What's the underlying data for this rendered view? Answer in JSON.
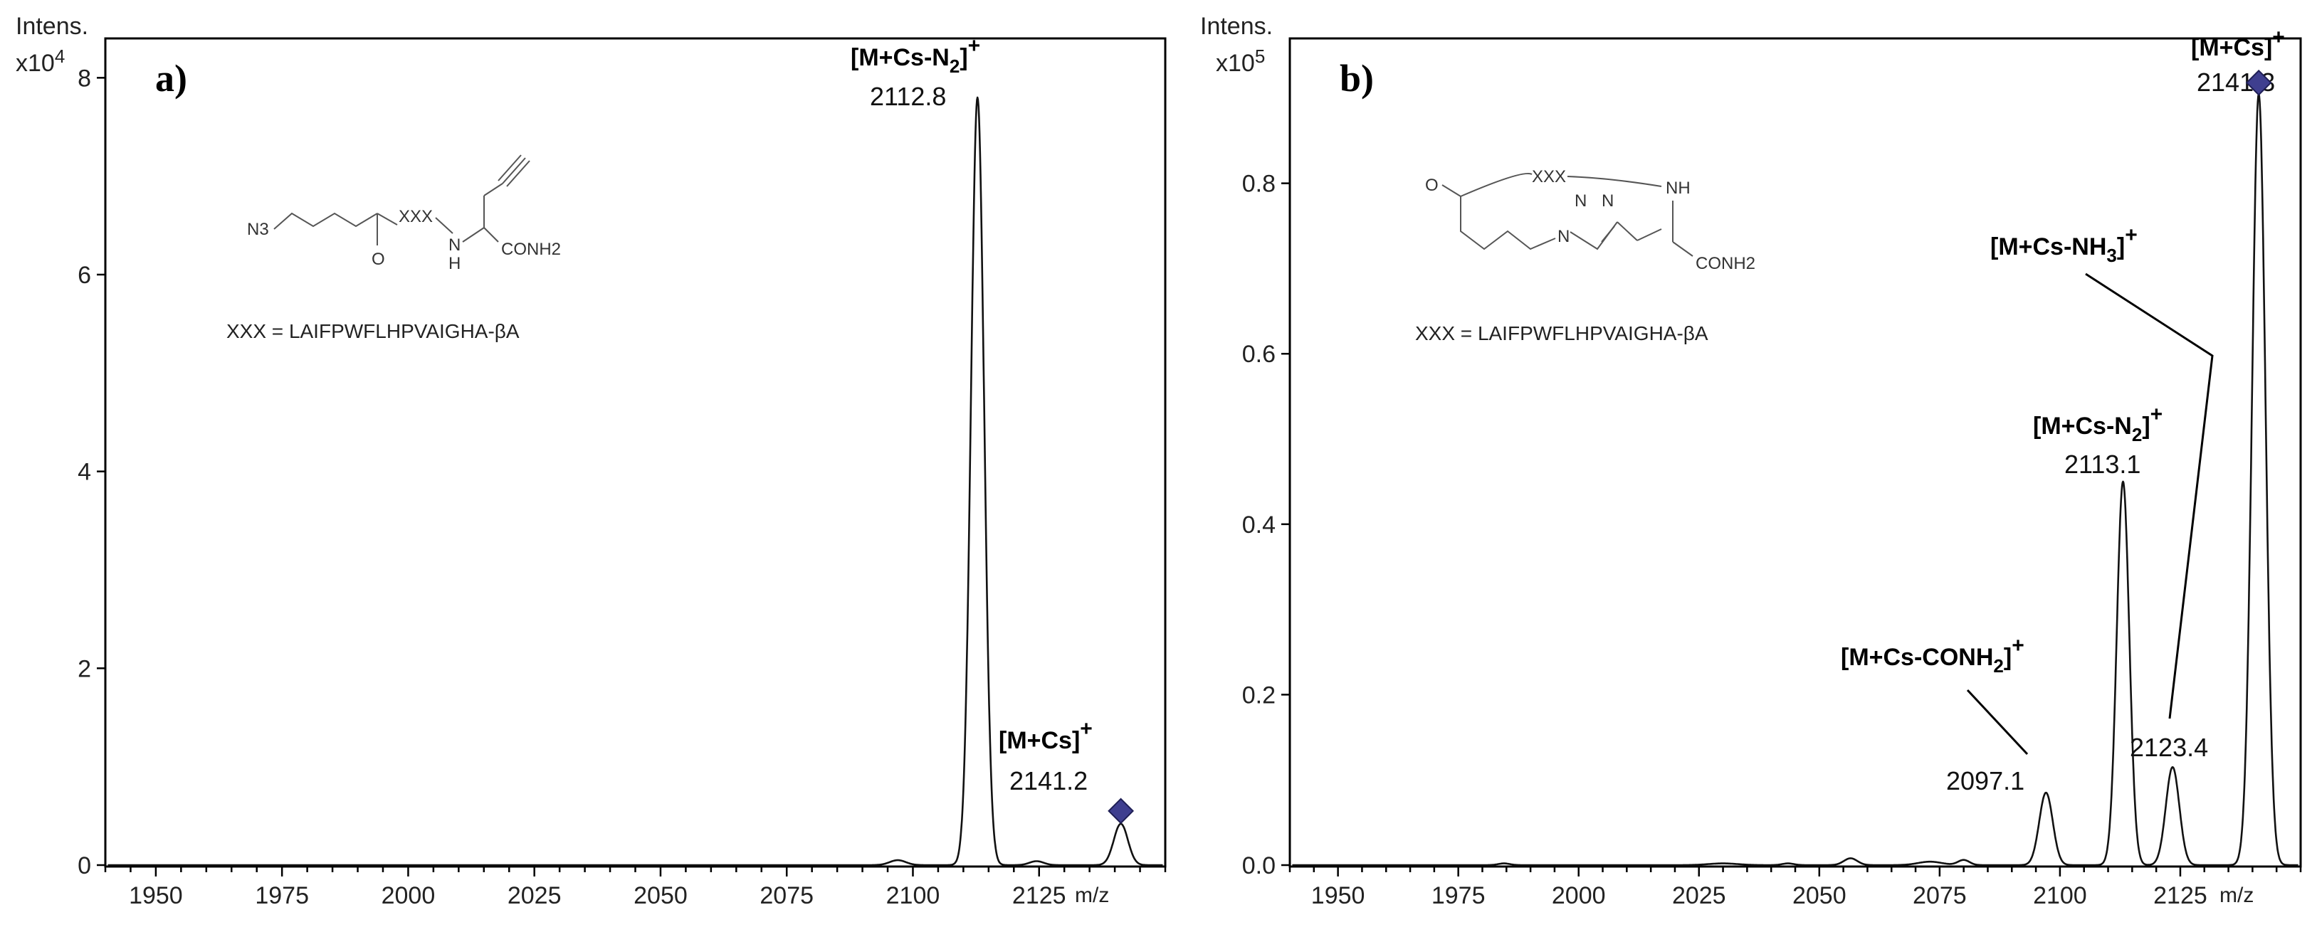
{
  "chart_data": [
    {
      "type": "line",
      "panel_label": "a)",
      "y_axis_label": "Intens.",
      "y_multiplier_base": "x10",
      "y_multiplier_exp": "4",
      "x_unit_label": "m/z",
      "xlim": [
        1940,
        2150
      ],
      "ylim": [
        0,
        8.4
      ],
      "xticks": [
        1950,
        1975,
        2000,
        2025,
        2050,
        2075,
        2100,
        2125
      ],
      "xtick_labels": [
        "1950",
        "1975",
        "2000",
        "2025",
        "2050",
        "2075",
        "2100",
        "2125"
      ],
      "yticks": [
        0,
        2,
        4,
        6,
        8
      ],
      "ytick_labels": [
        "0",
        "2",
        "4",
        "6",
        "8"
      ],
      "peaks": [
        {
          "mz": 2097.0,
          "intensity": 0.05,
          "width": 1.6
        },
        {
          "mz": 2112.8,
          "intensity": 7.8,
          "width": 1.3
        },
        {
          "mz": 2124.5,
          "intensity": 0.04,
          "width": 1.4
        },
        {
          "mz": 2141.2,
          "intensity": 0.42,
          "width": 1.4
        }
      ],
      "annotations": [
        {
          "label": "[M+Cs-N",
          "sub": "2",
          "close": "]",
          "sup": "+",
          "mz_text": "2112.8",
          "mz": 2112.8,
          "marker": false
        },
        {
          "label": "[M+Cs]",
          "sub": "",
          "close": "",
          "sup": "+",
          "mz_text": "2141.2",
          "mz": 2141.2,
          "marker": true,
          "marker_y": 0.55
        }
      ],
      "structure": {
        "labels": [
          "N3",
          "XXX",
          "O",
          "N",
          "H",
          "CONH2"
        ]
      },
      "sequence_text": "XXX  = LAIFPWFLHPVAIGHA-βA"
    },
    {
      "type": "line",
      "panel_label": "b)",
      "y_axis_label": "Intens.",
      "y_multiplier_base": "x10",
      "y_multiplier_exp": "5",
      "x_unit_label": "m/z",
      "xlim": [
        1940,
        2150
      ],
      "ylim": [
        0,
        0.97
      ],
      "xticks": [
        1950,
        1975,
        2000,
        2025,
        2050,
        2075,
        2100,
        2125
      ],
      "xtick_labels": [
        "1950",
        "1975",
        "2000",
        "2025",
        "2050",
        "2075",
        "2100",
        "2125"
      ],
      "yticks": [
        0.0,
        0.2,
        0.4,
        0.6,
        0.8
      ],
      "ytick_labels": [
        "0.0",
        "0.2",
        "0.4",
        "0.6",
        "0.8"
      ],
      "peaks": [
        {
          "mz": 1984.5,
          "intensity": 0.002,
          "width": 1.2
        },
        {
          "mz": 2030.0,
          "intensity": 0.002,
          "width": 3.0
        },
        {
          "mz": 2043.5,
          "intensity": 0.002,
          "width": 1.2
        },
        {
          "mz": 2056.5,
          "intensity": 0.008,
          "width": 1.4
        },
        {
          "mz": 2073.0,
          "intensity": 0.004,
          "width": 2.5
        },
        {
          "mz": 2080.0,
          "intensity": 0.006,
          "width": 1.2
        },
        {
          "mz": 2097.1,
          "intensity": 0.085,
          "width": 1.4
        },
        {
          "mz": 2113.1,
          "intensity": 0.45,
          "width": 1.3
        },
        {
          "mz": 2123.4,
          "intensity": 0.115,
          "width": 1.4
        },
        {
          "mz": 2141.3,
          "intensity": 0.905,
          "width": 1.4
        }
      ],
      "annotations": [
        {
          "label": "[M+Cs]",
          "sub": "",
          "close": "",
          "sup": "+",
          "mz_text": "2141.3",
          "mz": 2141.3,
          "marker": true,
          "marker_y": 0.918
        },
        {
          "label": "[M+Cs-NH",
          "sub": "3",
          "close": "]",
          "sup": "+",
          "mz_text": "",
          "mz": 2123.4,
          "marker": false
        },
        {
          "label": "[M+Cs-N",
          "sub": "2",
          "close": "]",
          "sup": "+",
          "mz_text": "2113.1",
          "mz": 2113.1,
          "marker": false
        },
        {
          "label": "[M+Cs-CONH",
          "sub": "2",
          "close": "]",
          "sup": "+",
          "mz_text": "2097.1",
          "mz": 2097.1,
          "marker": false
        },
        {
          "label": "",
          "sub": "",
          "close": "",
          "sup": "",
          "mz_text": "2123.4",
          "mz": 2123.4,
          "marker": false
        }
      ],
      "structure": {
        "labels": [
          "O",
          "XXX",
          "NH",
          "N",
          "N",
          "N",
          "CONH2"
        ]
      },
      "sequence_text": "XXX  = LAIFPWFLHPVAIGHA-βA"
    }
  ]
}
